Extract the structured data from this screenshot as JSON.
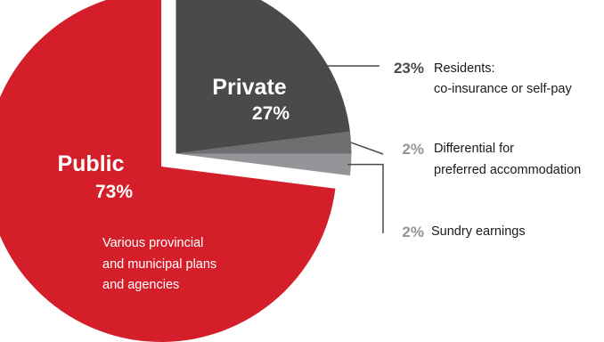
{
  "chart_data": {
    "type": "pie",
    "slices": [
      {
        "label": "Public",
        "pct_label": "73%",
        "value": 73,
        "color": "#d41f2b"
      },
      {
        "label": "Private",
        "pct_label": "27%",
        "value": 27,
        "color": "#4a4a4c",
        "breakdown": [
          {
            "pct_label": "23%",
            "value": 23,
            "text": [
              "Residents:",
              "co-insurance or self-pay"
            ],
            "color": "#4a4a4c"
          },
          {
            "pct_label": "2%",
            "value": 2,
            "text": [
              "Differential for",
              "preferred accommodation"
            ],
            "color": "#6d6e70"
          },
          {
            "pct_label": "2%",
            "value": 2,
            "text": [
              "Sundry earnings"
            ],
            "color": "#939598"
          }
        ]
      }
    ],
    "public_note": [
      "Various provincial",
      "and municipal plans",
      "and agencies"
    ]
  },
  "colors": {
    "public": "#d41f2b",
    "private_residents": "#4a4a4c",
    "private_differential": "#6d6e70",
    "private_sundry": "#939598",
    "leader_line": "#4a4a4c",
    "pct_dark": "#4a4a4c",
    "pct_light": "#939598"
  }
}
